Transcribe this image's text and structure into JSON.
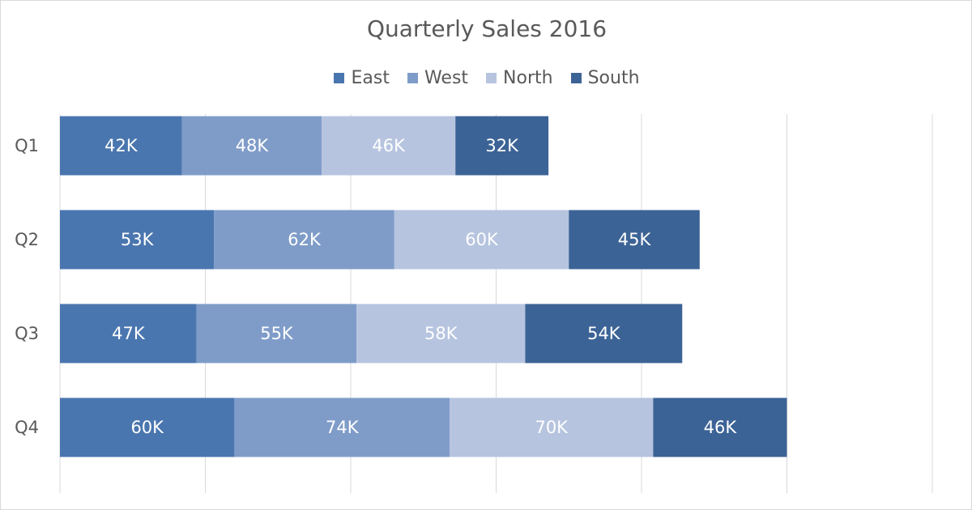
{
  "chart_data": {
    "type": "bar",
    "orientation": "horizontal",
    "stacked": true,
    "title": "Quarterly Sales 2016",
    "categories": [
      "Q1",
      "Q2",
      "Q3",
      "Q4"
    ],
    "series": [
      {
        "name": "East",
        "color": "#4a76af",
        "values": [
          42,
          53,
          47,
          60
        ],
        "labels": [
          "42K",
          "53K",
          "47K",
          "60K"
        ]
      },
      {
        "name": "West",
        "color": "#7f9cc9",
        "values": [
          48,
          62,
          55,
          74
        ],
        "labels": [
          "48K",
          "62K",
          "55K",
          "74K"
        ]
      },
      {
        "name": "North",
        "color": "#b6c4df",
        "values": [
          46,
          60,
          58,
          70
        ],
        "labels": [
          "46K",
          "60K",
          "58K",
          "70K"
        ]
      },
      {
        "name": "South",
        "color": "#3c6396",
        "values": [
          32,
          45,
          54,
          46
        ],
        "labels": [
          "32K",
          "45K",
          "54K",
          "46K"
        ]
      }
    ],
    "unit": "K",
    "xlim": [
      0,
      300
    ],
    "gridlines": "vertical",
    "legend_position": "top-center",
    "data_label_color": "#ffffff",
    "gridline_color": "#d9d9d9",
    "title_color": "#595959"
  }
}
